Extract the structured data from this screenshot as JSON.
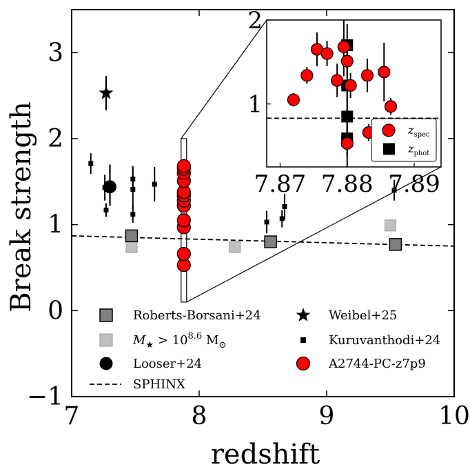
{
  "chart_data": {
    "type": "scatter",
    "title": "",
    "xlabel": "redshift",
    "ylabel": "Break strength",
    "xlim": [
      7,
      10
    ],
    "ylim": [
      -1,
      3.5
    ],
    "xticks": [
      7,
      8,
      9,
      10
    ],
    "xtick_labels": [
      "7",
      "8",
      "9",
      "10"
    ],
    "yticks": [
      -1,
      0,
      1,
      2,
      3
    ],
    "ytick_labels": [
      "−1",
      "0",
      "1",
      "2",
      "3"
    ],
    "grid": false,
    "legend_position": "lower-center",
    "legend": [
      {
        "label": "Roberts-Borsani+24",
        "marker": "square",
        "color": "#808080"
      },
      {
        "label": "Weibel+25",
        "marker": "star",
        "color": "#000000"
      },
      {
        "label_html": "<tspan font-style=\"italic\">M</tspan><tspan font-size=\"13\" dy=\"5\">★</tspan><tspan dy=\"-5\"> &gt; 10</tspan><tspan font-size=\"13\" dy=\"-8\">8.6</tspan><tspan dy=\"8\"> M</tspan><tspan font-size=\"13\" dy=\"5\">⊙</tspan>",
        "marker": "square",
        "color": "#bfbfbf"
      },
      {
        "label": "Kuruvanthodi+24",
        "marker": "small-square",
        "color": "#000000"
      },
      {
        "label": "Looser+24",
        "marker": "circle",
        "color": "#000000"
      },
      {
        "label": "A2744-PC-z7p9",
        "marker": "circle",
        "color": "#ff0000"
      },
      {
        "label": "SPHINX",
        "marker": "dashed-line",
        "color": "#000000"
      }
    ],
    "series": [
      {
        "name": "Roberts-Borsani+24",
        "color": "#808080",
        "points": [
          [
            7.47,
            0.87
          ],
          [
            8.56,
            0.8
          ],
          [
            9.54,
            0.77
          ]
        ]
      },
      {
        "name": "M > 10^8.6 Msun",
        "color": "#bfbfbf",
        "points": [
          [
            7.47,
            0.74
          ],
          [
            8.28,
            0.74
          ],
          [
            9.5,
            0.99
          ]
        ]
      },
      {
        "name": "Looser+24",
        "color": "#000000",
        "points": [
          [
            7.3,
            1.44
          ]
        ],
        "yerr": [
          [
            0.22,
            0.26
          ]
        ]
      },
      {
        "name": "Weibel+25",
        "color": "#000000",
        "points": [
          [
            7.27,
            2.53
          ]
        ],
        "yerr": [
          [
            0.2,
            0.2
          ]
        ]
      },
      {
        "name": "Kuruvanthodi+24",
        "color": "#000000",
        "points": [
          [
            7.15,
            1.71
          ],
          [
            7.26,
            1.43
          ],
          [
            7.27,
            1.17
          ],
          [
            7.48,
            1.53
          ],
          [
            7.48,
            1.41
          ],
          [
            7.48,
            1.12
          ],
          [
            7.65,
            1.47
          ],
          [
            8.53,
            1.03
          ],
          [
            8.65,
            1.07
          ],
          [
            8.67,
            1.21
          ],
          [
            9.53,
            1.4
          ]
        ],
        "yerr": [
          [
            0.12,
            0.12
          ],
          [
            0.15,
            0.15
          ],
          [
            0.08,
            0.08
          ],
          [
            0.15,
            0.15
          ],
          [
            0.25,
            0.25
          ],
          [
            0.1,
            0.1
          ],
          [
            0.2,
            0.2
          ],
          [
            0.13,
            0.13
          ],
          [
            0.1,
            0.1
          ],
          [
            0.15,
            0.15
          ],
          [
            0.12,
            0.12
          ]
        ]
      },
      {
        "name": "A2744-PC-z7p9",
        "color": "#ff0000",
        "points": [
          [
            7.872,
            1.05
          ],
          [
            7.874,
            1.34
          ],
          [
            7.8755,
            1.65
          ],
          [
            7.877,
            1.6
          ],
          [
            7.8785,
            1.28
          ],
          [
            7.8795,
            1.68
          ],
          [
            7.88,
            1.51
          ],
          [
            7.8805,
            1.22
          ],
          [
            7.883,
            1.34
          ],
          [
            7.8832,
            0.66
          ],
          [
            7.8855,
            1.38
          ],
          [
            7.8865,
            0.97
          ],
          [
            7.88,
            0.53
          ]
        ],
        "yerr": [
          [
            0.08,
            0.08
          ],
          [
            0.1,
            0.1
          ],
          [
            0.2,
            0.2
          ],
          [
            0.15,
            0.15
          ],
          [
            0.2,
            0.2
          ],
          [
            0.35,
            0.35
          ],
          [
            0.2,
            0.2
          ],
          [
            0.15,
            0.15
          ],
          [
            0.2,
            0.2
          ],
          [
            0.1,
            0.1
          ],
          [
            0.35,
            0.35
          ],
          [
            0.1,
            0.1
          ],
          [
            0.3,
            0.3
          ]
        ]
      },
      {
        "name": "SPHINX",
        "type": "line",
        "color": "#000000",
        "x": [
          7,
          10
        ],
        "y": [
          0.87,
          0.75
        ]
      }
    ],
    "inset": {
      "xlim": [
        7.868,
        7.894
      ],
      "ylim": [
        0.25,
        2.0
      ],
      "xticks": [
        7.87,
        7.88,
        7.89
      ],
      "xtick_labels": [
        "7.87",
        "7.88",
        "7.89"
      ],
      "yticks": [
        1,
        2
      ],
      "ytick_labels": [
        "1",
        "2"
      ],
      "legend": [
        {
          "label_main": "z",
          "label_sub": "spec",
          "marker": "circle",
          "color": "#ff0000"
        },
        {
          "label_main": "z",
          "label_sub": "phot",
          "marker": "square",
          "color": "#000000"
        }
      ],
      "spec_points": [
        [
          7.872,
          1.05
        ],
        [
          7.874,
          1.34
        ],
        [
          7.8755,
          1.65
        ],
        [
          7.877,
          1.6
        ],
        [
          7.8785,
          1.28
        ],
        [
          7.8795,
          1.68
        ],
        [
          7.88,
          1.51
        ],
        [
          7.8805,
          1.22
        ],
        [
          7.883,
          1.34
        ],
        [
          7.8832,
          0.66
        ],
        [
          7.8855,
          1.38
        ],
        [
          7.8865,
          0.97
        ],
        [
          7.88,
          0.53
        ]
      ],
      "spec_yerr": [
        [
          0.08,
          0.08
        ],
        [
          0.1,
          0.1
        ],
        [
          0.2,
          0.2
        ],
        [
          0.15,
          0.15
        ],
        [
          0.2,
          0.2
        ],
        [
          0.35,
          0.35
        ],
        [
          0.2,
          0.2
        ],
        [
          0.15,
          0.15
        ],
        [
          0.2,
          0.2
        ],
        [
          0.1,
          0.1
        ],
        [
          0.35,
          0.35
        ],
        [
          0.1,
          0.1
        ],
        [
          0.3,
          0.3
        ]
      ],
      "phot_points": [
        [
          7.88,
          1.7
        ],
        [
          7.88,
          1.22
        ],
        [
          7.88,
          0.85
        ],
        [
          7.88,
          0.59
        ],
        [
          7.88,
          0.56
        ]
      ],
      "phot_yerr": [
        [
          0.25,
          0.25
        ],
        [
          0.4,
          0.4
        ],
        [
          0.4,
          0.4
        ],
        [
          0.3,
          0.3
        ],
        [
          0.3,
          0.3
        ]
      ],
      "sphinx_y": 0.83
    }
  }
}
